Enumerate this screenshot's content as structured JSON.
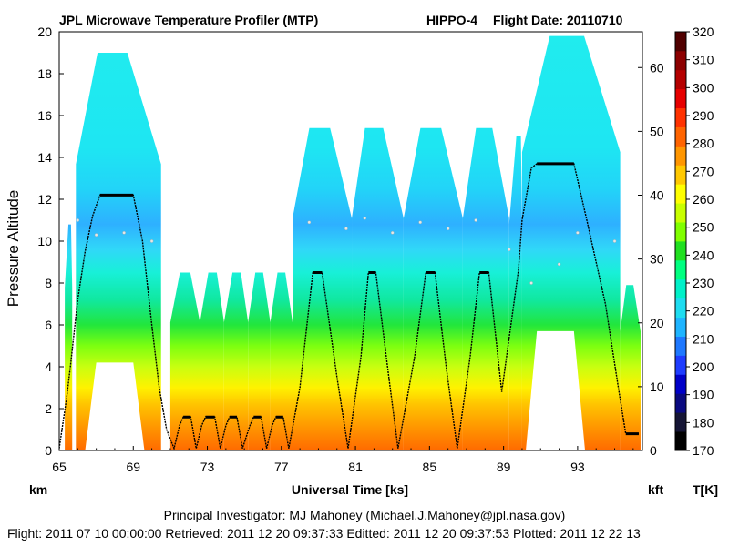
{
  "header": {
    "title": "JPL Microwave Temperature Profiler (MTP)",
    "mission": "HIPPO-4",
    "flight_date_label": "Flight Date: 20110710"
  },
  "footer": {
    "pi_line": "Principal Investigator: MJ Mahoney (Michael.J.Mahoney@jpl.nasa.gov)",
    "dates_line": "Flight: 2011 07 10 00:00:00   Retrieved: 2011 12 20 09:37:33   Editted: 2011 12 20 09:37:53   Plotted: 2011 12 22 13"
  },
  "chart_data": {
    "type": "heatmap",
    "title": "JPL Microwave Temperature Profiler (MTP)",
    "xlabel": "Universal Time [ks]",
    "ylabel": "Pressure Altitude",
    "x_unit_label": "km",
    "y2_unit_label": "kft",
    "colorbar_label": "T[K]",
    "xlim": [
      65,
      96.5
    ],
    "ylim": [
      0,
      20
    ],
    "y2lim": [
      0,
      65.6
    ],
    "x_ticks": [
      65,
      69,
      73,
      77,
      81,
      85,
      89,
      93
    ],
    "y_ticks": [
      0,
      2,
      4,
      6,
      8,
      10,
      12,
      14,
      16,
      18,
      20
    ],
    "y2_ticks": [
      0,
      10,
      20,
      30,
      40,
      50,
      60
    ],
    "colorbar": {
      "min": 170,
      "max": 320,
      "ticks": [
        170,
        180,
        190,
        200,
        210,
        220,
        230,
        240,
        250,
        260,
        270,
        280,
        290,
        300,
        310,
        320
      ],
      "colors": [
        "#000000",
        "#151535",
        "#0a0a80",
        "#0000c8",
        "#1e3cff",
        "#1e78ff",
        "#1eb4ff",
        "#1edcf0",
        "#00f0c8",
        "#00ff80",
        "#20e020",
        "#80ff00",
        "#c8ff00",
        "#ffff00",
        "#ffc800",
        "#ff9600",
        "#ff6400",
        "#ff3200",
        "#e60000",
        "#b40000",
        "#8c0000",
        "#500000"
      ]
    },
    "flight_profile": [
      [
        65.0,
        0.1
      ],
      [
        65.15,
        1.0
      ],
      [
        65.4,
        2.5
      ],
      [
        65.6,
        4.0
      ],
      [
        66.0,
        7.2
      ],
      [
        66.4,
        9.5
      ],
      [
        66.8,
        11.2
      ],
      [
        67.2,
        12.2
      ],
      [
        69.0,
        12.2
      ],
      [
        69.5,
        10.0
      ],
      [
        70.0,
        6.0
      ],
      [
        70.4,
        3.0
      ],
      [
        70.8,
        1.0
      ],
      [
        71.2,
        0.1
      ],
      [
        71.5,
        1.2
      ],
      [
        71.7,
        1.6
      ],
      [
        72.1,
        1.6
      ],
      [
        72.4,
        0.1
      ],
      [
        72.7,
        1.2
      ],
      [
        72.9,
        1.6
      ],
      [
        73.4,
        1.6
      ],
      [
        73.7,
        0.1
      ],
      [
        74.0,
        1.2
      ],
      [
        74.2,
        1.6
      ],
      [
        74.6,
        1.6
      ],
      [
        74.9,
        0.1
      ],
      [
        75.3,
        1.2
      ],
      [
        75.5,
        1.6
      ],
      [
        75.9,
        1.6
      ],
      [
        76.2,
        0.1
      ],
      [
        76.5,
        1.2
      ],
      [
        76.7,
        1.6
      ],
      [
        77.1,
        1.6
      ],
      [
        77.4,
        0.1
      ],
      [
        78.0,
        3.0
      ],
      [
        78.7,
        8.5
      ],
      [
        79.2,
        8.5
      ],
      [
        80.0,
        3.5
      ],
      [
        80.6,
        0.1
      ],
      [
        81.3,
        4.5
      ],
      [
        81.7,
        8.5
      ],
      [
        82.1,
        8.5
      ],
      [
        82.8,
        3.5
      ],
      [
        83.3,
        0.1
      ],
      [
        84.2,
        4.5
      ],
      [
        84.8,
        8.5
      ],
      [
        85.3,
        8.5
      ],
      [
        85.9,
        4.0
      ],
      [
        86.5,
        0.1
      ],
      [
        87.2,
        4.5
      ],
      [
        87.7,
        8.5
      ],
      [
        88.2,
        8.5
      ],
      [
        88.9,
        2.8
      ],
      [
        89.8,
        8.6
      ],
      [
        90.0,
        11.0
      ],
      [
        90.5,
        13.5
      ],
      [
        90.8,
        13.7
      ],
      [
        92.8,
        13.7
      ],
      [
        93.5,
        11.0
      ],
      [
        94.5,
        7.0
      ],
      [
        95.2,
        3.0
      ],
      [
        95.6,
        0.8
      ],
      [
        96.3,
        0.8
      ]
    ],
    "tropopause": [
      [
        66.0,
        11.0
      ],
      [
        67.0,
        10.3
      ],
      [
        68.5,
        10.4
      ],
      [
        70.0,
        10.0
      ],
      [
        78.5,
        10.9
      ],
      [
        80.5,
        10.6
      ],
      [
        81.5,
        11.1
      ],
      [
        83.0,
        10.4
      ],
      [
        84.5,
        10.9
      ],
      [
        86.0,
        10.6
      ],
      [
        87.5,
        11.0
      ],
      [
        89.3,
        9.6
      ],
      [
        90.5,
        8.0
      ],
      [
        92.0,
        8.9
      ],
      [
        93.0,
        10.4
      ],
      [
        95.0,
        10.0
      ]
    ],
    "cloud_segments": [
      {
        "t0": 65.3,
        "t1": 65.7,
        "tmax": 65.6,
        "zmax": 10.8
      },
      {
        "t0": 65.9,
        "t1": 70.5,
        "tmax": 67.7,
        "zmax": 19.0
      },
      {
        "t0": 71.0,
        "t1": 72.6,
        "tmax": 71.8,
        "zmax": 8.5
      },
      {
        "t0": 72.6,
        "t1": 73.9,
        "tmax": 73.3,
        "zmax": 8.5
      },
      {
        "t0": 73.9,
        "t1": 75.2,
        "tmax": 74.6,
        "zmax": 8.5
      },
      {
        "t0": 75.2,
        "t1": 76.4,
        "tmax": 75.8,
        "zmax": 8.5
      },
      {
        "t0": 76.4,
        "t1": 77.6,
        "tmax": 77.0,
        "zmax": 8.5
      },
      {
        "t0": 77.6,
        "t1": 80.8,
        "tmax": 79.0,
        "zmax": 15.4
      },
      {
        "t0": 80.8,
        "t1": 83.6,
        "tmax": 81.9,
        "zmax": 15.4
      },
      {
        "t0": 83.6,
        "t1": 86.8,
        "tmax": 85.0,
        "zmax": 15.4
      },
      {
        "t0": 86.8,
        "t1": 89.3,
        "tmax": 87.9,
        "zmax": 15.4
      },
      {
        "t0": 89.3,
        "t1": 90.0,
        "tmax": 89.9,
        "zmax": 15.0
      },
      {
        "t0": 90.0,
        "t1": 95.3,
        "tmax": 92.3,
        "zmax": 19.8
      },
      {
        "t0": 95.3,
        "t1": 96.4,
        "tmax": 95.8,
        "zmax": 7.9
      }
    ],
    "blank_regions": [
      {
        "t0": 67.0,
        "t1": 69.0,
        "zmax": 4.2
      },
      {
        "t0": 90.8,
        "t1": 92.8,
        "zmax": 5.7
      }
    ],
    "grid": false,
    "legend": "none"
  }
}
